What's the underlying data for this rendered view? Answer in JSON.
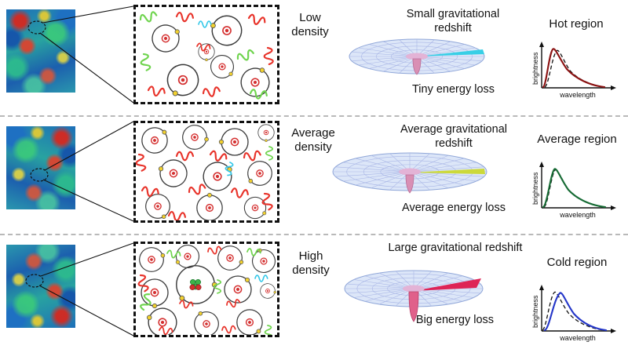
{
  "plot_labels": {
    "y": "brightness",
    "x": "wavelength"
  },
  "colors": {
    "row1_curve": "#8b1212",
    "row2_curve": "#166b34",
    "row3_curve": "#2436c8",
    "photon_red": "#e8332a",
    "photon_green": "#6fd44e",
    "photon_cyan": "#35c8e8",
    "nucleus_red": "#d43030",
    "electron_yellow": "#f2d12e",
    "disk_fill": "#dce6f8",
    "well_pink": "#d98fb4",
    "streak_row1": "#38cfe6",
    "streak_row2": "#ccd93a",
    "streak_row3": "#de2456"
  },
  "rows": [
    {
      "density": "Low density",
      "redshift": "Small gravitational redshift",
      "energy": "Tiny energy loss",
      "region": "Hot region"
    },
    {
      "density": "Average density",
      "redshift": "Average gravitational redshift",
      "energy": "Average energy loss",
      "region": "Average region"
    },
    {
      "density": "High density",
      "redshift": "Large gravitational redshift",
      "energy": "Big energy loss",
      "region": "Cold region"
    }
  ]
}
